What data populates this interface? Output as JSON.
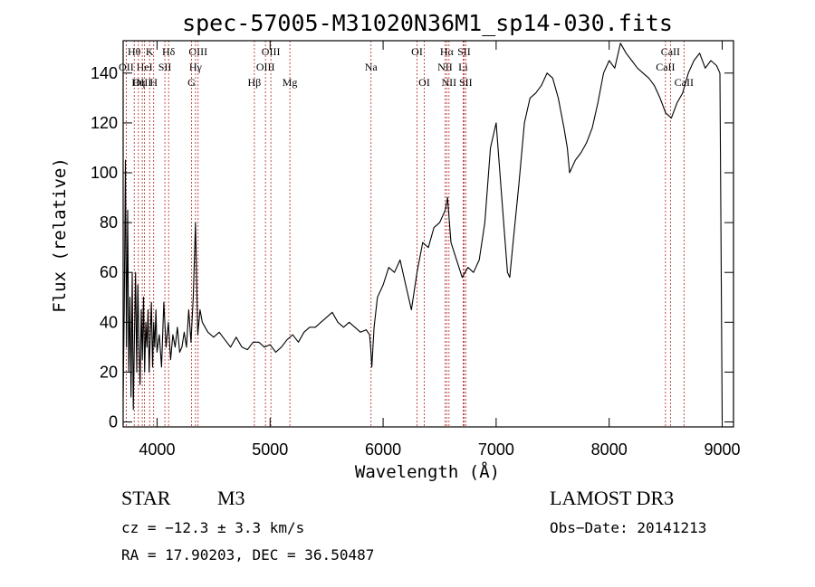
{
  "chart_data": {
    "type": "line",
    "title": "spec-57005-M31020N36M1_sp14-030.fits",
    "xlabel": "Wavelength (Å)",
    "ylabel": "Flux (relative)",
    "xlim": [
      3700,
      9100
    ],
    "ylim": [
      -2,
      153
    ],
    "x_ticks": [
      4000,
      5000,
      6000,
      7000,
      8000,
      9000
    ],
    "y_ticks": [
      0,
      20,
      40,
      60,
      80,
      100,
      120,
      140
    ],
    "series": [
      {
        "name": "flux",
        "x": [
          3700,
          3710,
          3720,
          3730,
          3740,
          3750,
          3760,
          3770,
          3780,
          3790,
          3800,
          3810,
          3820,
          3830,
          3840,
          3850,
          3860,
          3870,
          3880,
          3890,
          3900,
          3910,
          3920,
          3930,
          3940,
          3950,
          3960,
          3970,
          3980,
          3990,
          4000,
          4020,
          4040,
          4060,
          4080,
          4100,
          4120,
          4140,
          4160,
          4180,
          4200,
          4220,
          4240,
          4260,
          4280,
          4300,
          4320,
          4340,
          4360,
          4380,
          4400,
          4450,
          4500,
          4550,
          4600,
          4650,
          4700,
          4750,
          4800,
          4850,
          4900,
          4950,
          5000,
          5050,
          5100,
          5150,
          5200,
          5250,
          5300,
          5350,
          5400,
          5450,
          5500,
          5550,
          5600,
          5650,
          5700,
          5750,
          5800,
          5850,
          5880,
          5890,
          5900,
          5920,
          5950,
          6000,
          6050,
          6100,
          6150,
          6200,
          6250,
          6300,
          6350,
          6400,
          6450,
          6500,
          6550,
          6570,
          6600,
          6650,
          6700,
          6750,
          6800,
          6850,
          6900,
          6950,
          7000,
          7050,
          7100,
          7120,
          7150,
          7200,
          7250,
          7300,
          7350,
          7400,
          7450,
          7500,
          7550,
          7600,
          7630,
          7650,
          7700,
          7750,
          7800,
          7850,
          7900,
          7950,
          8000,
          8050,
          8100,
          8150,
          8200,
          8250,
          8300,
          8350,
          8400,
          8450,
          8500,
          8550,
          8600,
          8650,
          8700,
          8750,
          8800,
          8850,
          8900,
          8950,
          8980,
          9000
        ],
        "values": [
          10,
          45,
          105,
          30,
          85,
          20,
          50,
          10,
          60,
          5,
          35,
          60,
          20,
          55,
          30,
          15,
          45,
          25,
          50,
          20,
          40,
          30,
          45,
          20,
          35,
          48,
          22,
          40,
          30,
          45,
          28,
          35,
          22,
          48,
          30,
          40,
          25,
          35,
          30,
          38,
          28,
          30,
          36,
          30,
          45,
          32,
          50,
          80,
          35,
          45,
          40,
          36,
          34,
          36,
          33,
          30,
          34,
          30,
          29,
          32,
          32,
          30,
          31,
          28,
          30,
          33,
          35,
          32,
          36,
          38,
          38,
          40,
          42,
          44,
          40,
          38,
          40,
          38,
          36,
          37,
          35,
          30,
          22,
          38,
          50,
          55,
          62,
          60,
          65,
          55,
          45,
          60,
          72,
          70,
          78,
          80,
          85,
          90,
          72,
          65,
          58,
          62,
          60,
          65,
          80,
          110,
          120,
          90,
          60,
          58,
          72,
          95,
          120,
          130,
          132,
          135,
          140,
          138,
          130,
          118,
          110,
          100,
          105,
          108,
          112,
          118,
          128,
          140,
          145,
          142,
          152,
          148,
          145,
          142,
          140,
          138,
          135,
          130,
          124,
          122,
          128,
          132,
          140,
          145,
          148,
          142,
          145,
          143,
          140,
          1
        ]
      }
    ],
    "spectral_lines": [
      {
        "label": "Hθ",
        "wavelength": 3798,
        "row": 0
      },
      {
        "label": "K",
        "wavelength": 3934,
        "row": 0
      },
      {
        "label": "Hδ",
        "wavelength": 4102,
        "row": 0
      },
      {
        "label": "OIII",
        "wavelength": 4363,
        "row": 0
      },
      {
        "label": "OIII",
        "wavelength": 5007,
        "row": 0
      },
      {
        "label": "OI",
        "wavelength": 6300,
        "row": 0
      },
      {
        "label": "Hα",
        "wavelength": 6563,
        "row": 0
      },
      {
        "label": "SII",
        "wavelength": 6716,
        "row": 0
      },
      {
        "label": "CaII",
        "wavelength": 8542,
        "row": 0
      },
      {
        "label": "OII",
        "wavelength": 3727,
        "row": 1
      },
      {
        "label": "HeI",
        "wavelength": 3889,
        "row": 1
      },
      {
        "label": "SII",
        "wavelength": 4069,
        "row": 1
      },
      {
        "label": "Hγ",
        "wavelength": 4340,
        "row": 1
      },
      {
        "label": "OIII",
        "wavelength": 4959,
        "row": 1
      },
      {
        "label": "Na",
        "wavelength": 5893,
        "row": 1
      },
      {
        "label": "NII",
        "wavelength": 6548,
        "row": 1
      },
      {
        "label": "Li",
        "wavelength": 6708,
        "row": 1
      },
      {
        "label": "CaII",
        "wavelength": 8498,
        "row": 1
      },
      {
        "label": "OIII",
        "wavelength": 3869,
        "row": 2
      },
      {
        "label": "Hη",
        "wavelength": 3835,
        "row": 2
      },
      {
        "label": "H",
        "wavelength": 3970,
        "row": 2
      },
      {
        "label": "G",
        "wavelength": 4305,
        "row": 2
      },
      {
        "label": "Hβ",
        "wavelength": 4861,
        "row": 2
      },
      {
        "label": "Mg",
        "wavelength": 5175,
        "row": 2
      },
      {
        "label": "OI",
        "wavelength": 6364,
        "row": 2
      },
      {
        "label": "NII",
        "wavelength": 6583,
        "row": 2
      },
      {
        "label": "SII",
        "wavelength": 6731,
        "row": 2
      },
      {
        "label": "CaII",
        "wavelength": 8662,
        "row": 2
      }
    ]
  },
  "info": {
    "object_type": "STAR",
    "subclass": "M3",
    "survey": "LAMOST DR3",
    "cz": "cz = −12.3 ± 3.3 km/s",
    "obs_date": "Obs−Date: 20141213",
    "coords": "RA =  17.90203, DEC =  36.50487"
  },
  "colors": {
    "line_marker": "#b22222",
    "spectrum": "#000000",
    "axes": "#000000"
  }
}
